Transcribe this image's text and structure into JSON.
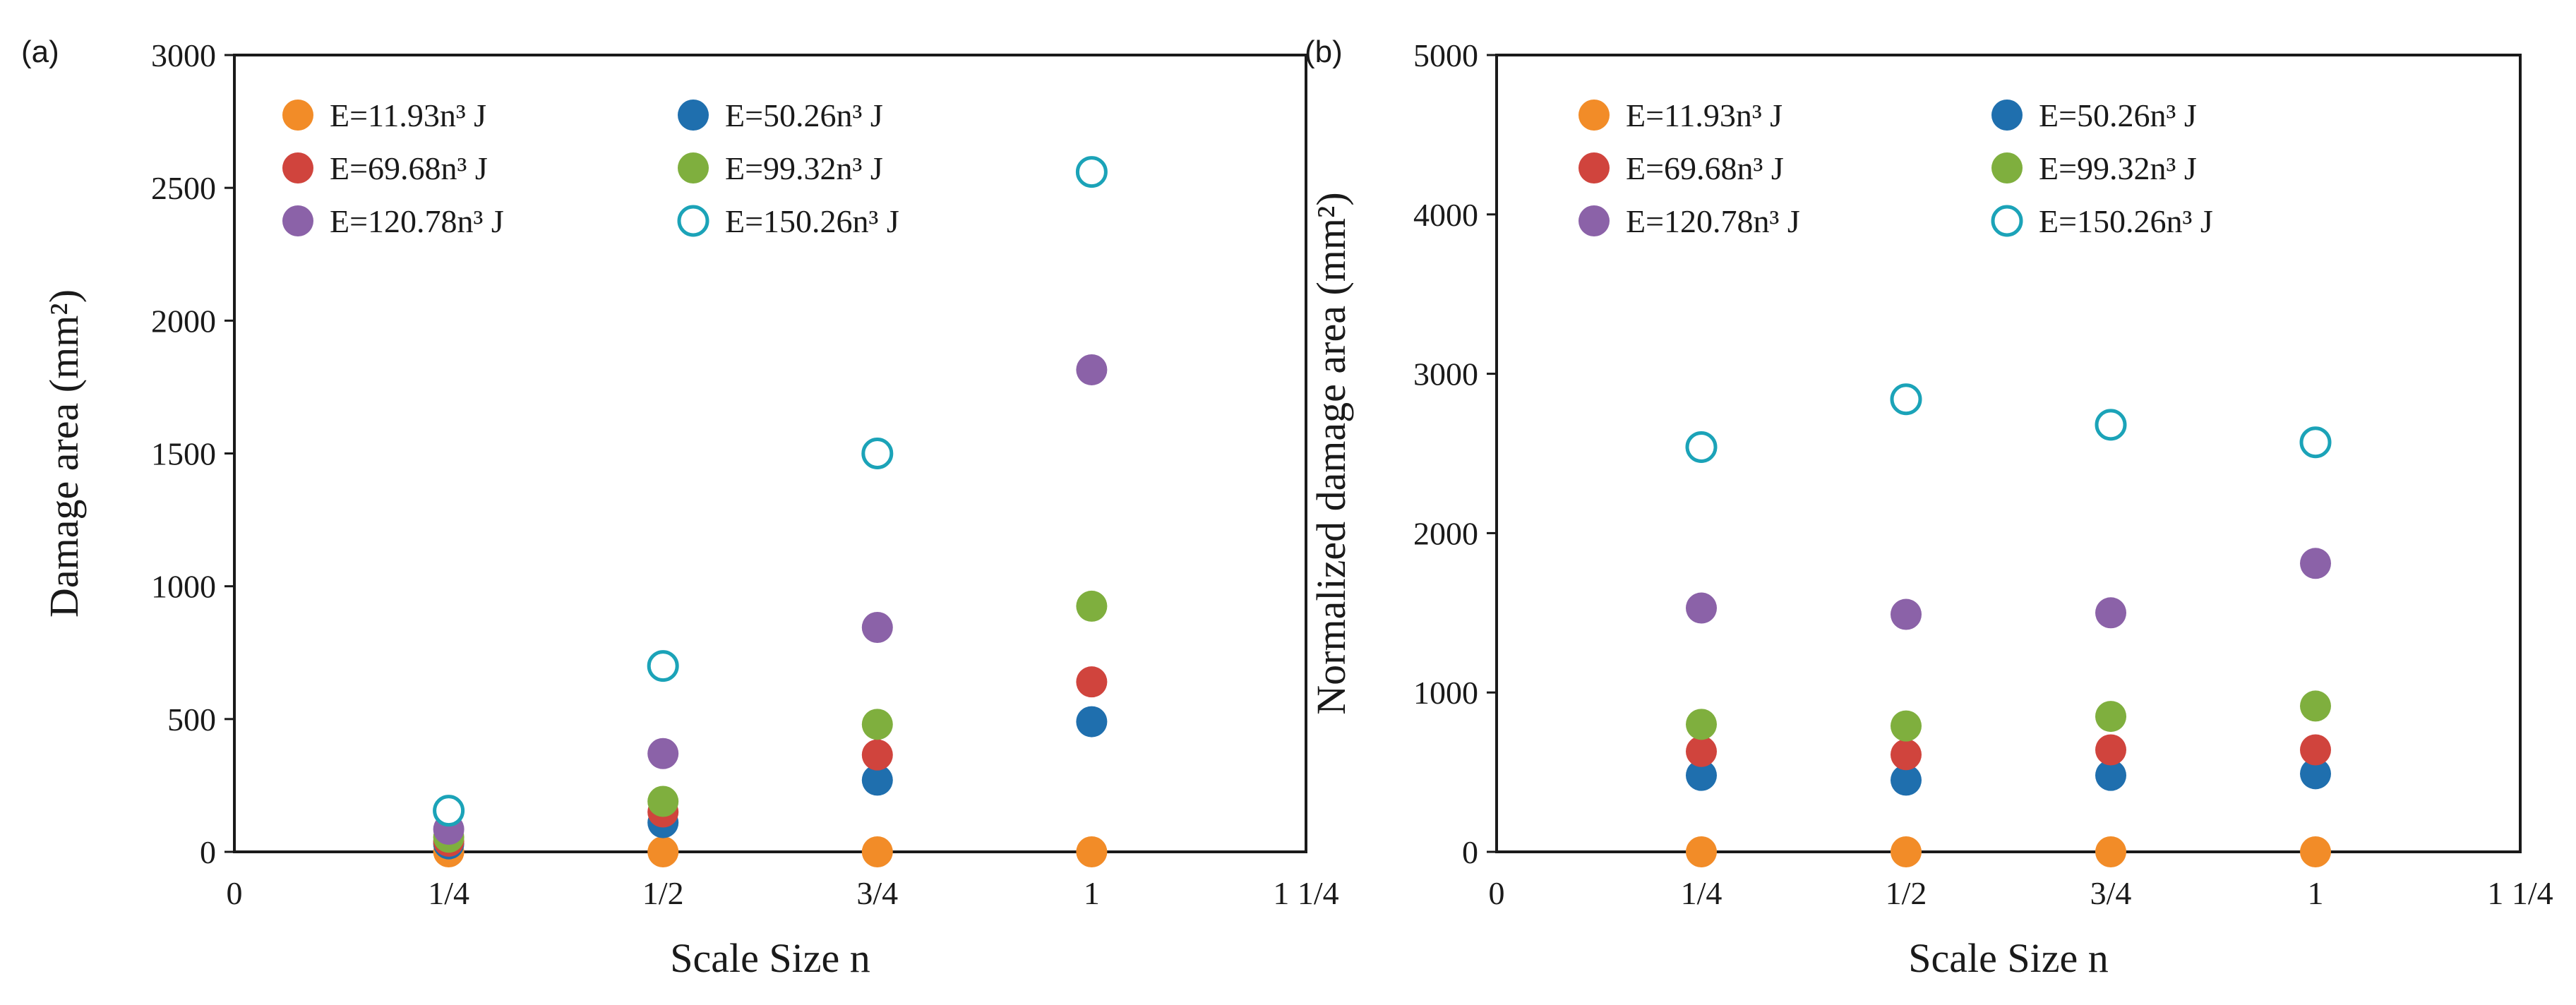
{
  "chart_data": [
    {
      "type": "scatter",
      "panel_label": "(a)",
      "xlabel": "Scale Size n",
      "ylabel": "Damage area (mm²)",
      "xlim": [
        0,
        1.25
      ],
      "ylim": [
        0,
        3000
      ],
      "x_ticks": [
        0,
        0.25,
        0.5,
        0.75,
        1.0,
        1.25
      ],
      "x_tick_labels": [
        "0",
        "1/4",
        "1/2",
        "3/4",
        "1",
        "1 1/4"
      ],
      "y_ticks": [
        0,
        500,
        1000,
        1500,
        2000,
        2500,
        3000
      ],
      "y_tick_labels": [
        "0",
        "500",
        "1000",
        "1500",
        "2000",
        "2500",
        "3000"
      ],
      "legend_position": "top-left",
      "series": [
        {
          "name": "E=11.93n³ J",
          "color": "#F28C28",
          "filled": true,
          "x": [
            0.25,
            0.5,
            0.75,
            1.0
          ],
          "y": [
            0,
            0,
            0,
            0
          ]
        },
        {
          "name": "E=50.26n³ J",
          "color": "#1F6FAE",
          "filled": true,
          "x": [
            0.25,
            0.5,
            0.75,
            1.0
          ],
          "y": [
            30,
            110,
            270,
            490
          ]
        },
        {
          "name": "E=69.68n³ J",
          "color": "#D0443D",
          "filled": true,
          "x": [
            0.25,
            0.5,
            0.75,
            1.0
          ],
          "y": [
            40,
            150,
            365,
            640
          ]
        },
        {
          "name": "E=99.32n³ J",
          "color": "#7FAF3E",
          "filled": true,
          "x": [
            0.25,
            0.5,
            0.75,
            1.0
          ],
          "y": [
            55,
            190,
            480,
            925
          ]
        },
        {
          "name": "E=120.78n³ J",
          "color": "#8B62A8",
          "filled": true,
          "x": [
            0.25,
            0.5,
            0.75,
            1.0
          ],
          "y": [
            85,
            370,
            845,
            1815
          ]
        },
        {
          "name": "E=150.26n³ J",
          "color": "#1BA3B8",
          "filled": false,
          "x": [
            0.25,
            0.5,
            0.75,
            1.0
          ],
          "y": [
            155,
            700,
            1500,
            2560
          ]
        }
      ]
    },
    {
      "type": "scatter",
      "panel_label": "(b)",
      "xlabel": "Scale Size n",
      "ylabel": "Normalized damage area (mm²)",
      "xlim": [
        0,
        1.25
      ],
      "ylim": [
        0,
        5000
      ],
      "x_ticks": [
        0,
        0.25,
        0.5,
        0.75,
        1.0,
        1.25
      ],
      "x_tick_labels": [
        "0",
        "1/4",
        "1/2",
        "3/4",
        "1",
        "1 1/4"
      ],
      "y_ticks": [
        0,
        1000,
        2000,
        3000,
        4000,
        5000
      ],
      "y_tick_labels": [
        "0",
        "1000",
        "2000",
        "3000",
        "4000",
        "5000"
      ],
      "legend_position": "top-left",
      "series": [
        {
          "name": "E=11.93n³ J",
          "color": "#F28C28",
          "filled": true,
          "x": [
            0.25,
            0.5,
            0.75,
            1.0
          ],
          "y": [
            0,
            0,
            0,
            0
          ]
        },
        {
          "name": "E=50.26n³ J",
          "color": "#1F6FAE",
          "filled": true,
          "x": [
            0.25,
            0.5,
            0.75,
            1.0
          ],
          "y": [
            480,
            450,
            480,
            490
          ]
        },
        {
          "name": "E=69.68n³ J",
          "color": "#D0443D",
          "filled": true,
          "x": [
            0.25,
            0.5,
            0.75,
            1.0
          ],
          "y": [
            630,
            610,
            640,
            640
          ]
        },
        {
          "name": "E=99.32n³ J",
          "color": "#7FAF3E",
          "filled": true,
          "x": [
            0.25,
            0.5,
            0.75,
            1.0
          ],
          "y": [
            800,
            790,
            850,
            915
          ]
        },
        {
          "name": "E=120.78n³ J",
          "color": "#8B62A8",
          "filled": true,
          "x": [
            0.25,
            0.5,
            0.75,
            1.0
          ],
          "y": [
            1530,
            1490,
            1500,
            1810
          ]
        },
        {
          "name": "E=150.26n³ J",
          "color": "#1BA3B8",
          "filled": false,
          "x": [
            0.25,
            0.5,
            0.75,
            1.0
          ],
          "y": [
            2540,
            2840,
            2680,
            2570
          ]
        }
      ]
    }
  ]
}
